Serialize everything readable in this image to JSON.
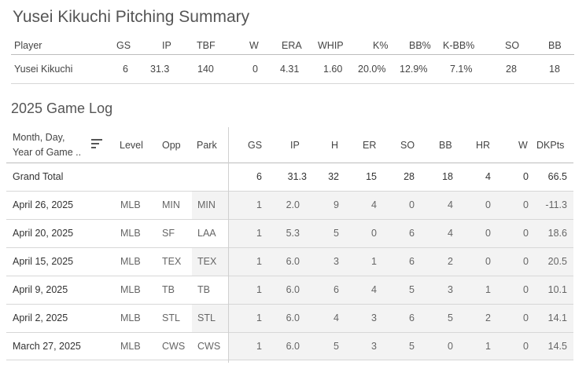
{
  "title": "Yusei Kikuchi Pitching Summary",
  "summary": {
    "headers": {
      "player": "Player",
      "gs": "GS",
      "ip": "IP",
      "tbf": "TBF",
      "w": "W",
      "era": "ERA",
      "whip": "WHIP",
      "k_pct": "K%",
      "bb_pct": "BB%",
      "k_bb_pct": "K-BB%",
      "so": "SO",
      "bb": "BB"
    },
    "row": {
      "player": "Yusei Kikuchi",
      "gs": "6",
      "ip": "31.3",
      "tbf": "140",
      "w": "0",
      "era": "4.31",
      "whip": "1.60",
      "k_pct": "20.0%",
      "bb_pct": "12.9%",
      "k_bb_pct": "7.1%",
      "so": "28",
      "bb": "18"
    }
  },
  "game_log": {
    "title": "2025 Game Log",
    "headers": {
      "date_line1": "Month, Day,",
      "date_line2": "Year of Game ..",
      "level": "Level",
      "opp": "Opp",
      "park": "Park",
      "gs": "GS",
      "ip": "IP",
      "h": "H",
      "er": "ER",
      "so": "SO",
      "bb": "BB",
      "hr": "HR",
      "w": "W",
      "dkpts": "DKPts"
    },
    "total": {
      "label": "Grand Total",
      "gs": "6",
      "ip": "31.3",
      "h": "32",
      "er": "15",
      "so": "28",
      "bb": "18",
      "hr": "4",
      "w": "0",
      "dkpts": "66.5"
    },
    "rows": [
      {
        "date": "April 26, 2025",
        "level": "MLB",
        "opp": "MIN",
        "park": "MIN",
        "gs": "1",
        "ip": "2.0",
        "h": "9",
        "er": "4",
        "so": "0",
        "bb": "4",
        "hr": "0",
        "w": "0",
        "dkpts": "-11.3"
      },
      {
        "date": "April 20, 2025",
        "level": "MLB",
        "opp": "SF",
        "park": "LAA",
        "gs": "1",
        "ip": "5.3",
        "h": "5",
        "er": "0",
        "so": "6",
        "bb": "4",
        "hr": "0",
        "w": "0",
        "dkpts": "18.6"
      },
      {
        "date": "April 15, 2025",
        "level": "MLB",
        "opp": "TEX",
        "park": "TEX",
        "gs": "1",
        "ip": "6.0",
        "h": "3",
        "er": "1",
        "so": "6",
        "bb": "2",
        "hr": "0",
        "w": "0",
        "dkpts": "20.5"
      },
      {
        "date": "April 9, 2025",
        "level": "MLB",
        "opp": "TB",
        "park": "TB",
        "gs": "1",
        "ip": "6.0",
        "h": "6",
        "er": "4",
        "so": "5",
        "bb": "3",
        "hr": "1",
        "w": "0",
        "dkpts": "10.1"
      },
      {
        "date": "April 2, 2025",
        "level": "MLB",
        "opp": "STL",
        "park": "STL",
        "gs": "1",
        "ip": "6.0",
        "h": "4",
        "er": "3",
        "so": "6",
        "bb": "5",
        "hr": "2",
        "w": "0",
        "dkpts": "14.1"
      },
      {
        "date": "March 27, 2025",
        "level": "MLB",
        "opp": "CWS",
        "park": "CWS",
        "gs": "1",
        "ip": "6.0",
        "h": "5",
        "er": "3",
        "so": "5",
        "bb": "0",
        "hr": "1",
        "w": "0",
        "dkpts": "14.5"
      }
    ]
  },
  "icons": {
    "sort": "sort-descending-icon"
  }
}
